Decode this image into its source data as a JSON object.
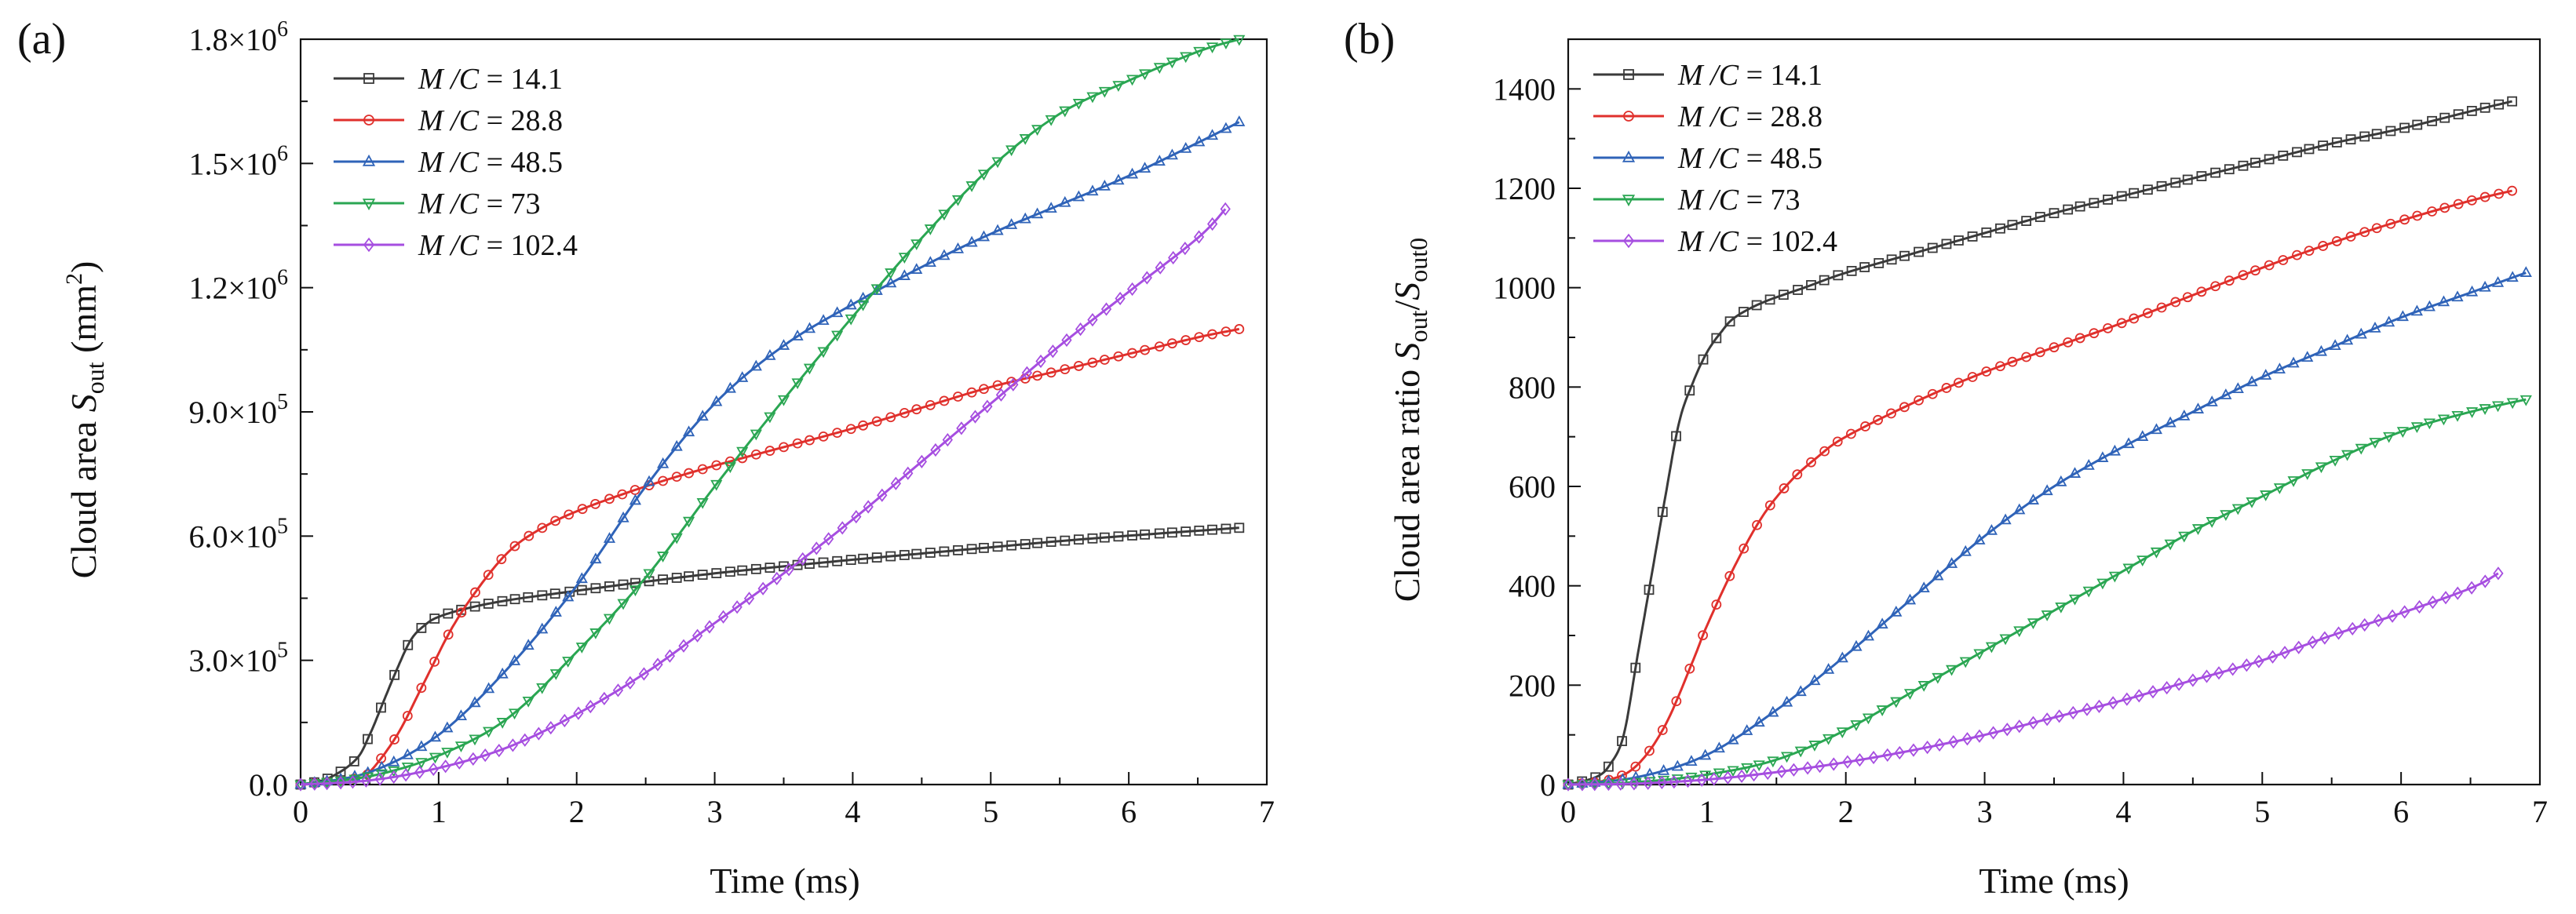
{
  "chart_data": [
    {
      "type": "line",
      "panel_label": "(a)",
      "xlabel": "Time (ms)",
      "ylabel": {
        "main": "Cloud area ",
        "var": "S",
        "sub": "out",
        "unit_pre": " (mm",
        "unit_sup": "2",
        "unit_post": ")"
      },
      "xlim": [
        0,
        7
      ],
      "ylim": [
        0,
        1800000
      ],
      "xticks": [
        0,
        1,
        2,
        3,
        4,
        5,
        6,
        7
      ],
      "xtick_labels": [
        "0",
        "1",
        "2",
        "3",
        "4",
        "5",
        "6",
        "7"
      ],
      "yticks": [
        0,
        300000,
        600000,
        900000,
        1200000,
        1500000,
        1800000
      ],
      "ytick_labels": [
        {
          "mant": "0.0",
          "exp": ""
        },
        {
          "mant": "3.0×10",
          "exp": "5"
        },
        {
          "mant": "6.0×10",
          "exp": "5"
        },
        {
          "mant": "9.0×10",
          "exp": "5"
        },
        {
          "mant": "1.2×10",
          "exp": "6"
        },
        {
          "mant": "1.5×10",
          "exp": "6"
        },
        {
          "mant": "1.8×10",
          "exp": "6"
        }
      ],
      "legend_position": "top-left",
      "series": [
        {
          "name": "M /C = 14.1",
          "legend": {
            "var": "M /C",
            "val": " = 14.1"
          },
          "color": "#3a3a3a",
          "marker": "square",
          "x": [
            0,
            0.2,
            0.4,
            0.5,
            0.6,
            0.7,
            0.8,
            0.9,
            1.0,
            1.2,
            1.5,
            2.0,
            2.5,
            3.0,
            3.5,
            4.0,
            4.5,
            5.0,
            5.5,
            6.0,
            6.5,
            6.8
          ],
          "y": [
            0,
            15000,
            60000,
            120000,
            200000,
            280000,
            350000,
            385000,
            405000,
            425000,
            445000,
            468000,
            490000,
            510000,
            527000,
            543000,
            558000,
            573000,
            588000,
            601000,
            613000,
            620000
          ]
        },
        {
          "name": "M /C = 28.8",
          "legend": {
            "var": "M /C",
            "val": " = 28.8"
          },
          "color": "#e0302c",
          "marker": "circle",
          "x": [
            0,
            0.4,
            0.5,
            0.7,
            0.9,
            1.1,
            1.3,
            1.5,
            1.7,
            2.0,
            2.5,
            3.0,
            3.5,
            4.0,
            4.5,
            5.0,
            5.5,
            6.0,
            6.5,
            6.8
          ],
          "y": [
            0,
            15000,
            30000,
            120000,
            250000,
            380000,
            480000,
            560000,
            610000,
            660000,
            720000,
            770000,
            815000,
            860000,
            910000,
            960000,
            1000000,
            1040000,
            1080000,
            1100000
          ]
        },
        {
          "name": "M /C = 48.5",
          "legend": {
            "var": "M /C",
            "val": " = 48.5"
          },
          "color": "#2f63b8",
          "marker": "triangle",
          "x": [
            0,
            0.5,
            1.0,
            1.5,
            2.0,
            2.5,
            3.0,
            3.5,
            4.0,
            4.5,
            5.0,
            5.5,
            6.0,
            6.5,
            6.8
          ],
          "y": [
            0,
            30000,
            120000,
            280000,
            480000,
            720000,
            920000,
            1060000,
            1160000,
            1250000,
            1330000,
            1400000,
            1470000,
            1550000,
            1600000
          ]
        },
        {
          "name": "M /C = 73",
          "legend": {
            "var": "M /C",
            "val": " = 73"
          },
          "color": "#2aa652",
          "marker": "triangle-down",
          "x": [
            0,
            0.5,
            1.0,
            1.5,
            2.0,
            2.5,
            3.0,
            3.5,
            4.0,
            4.5,
            5.0,
            5.5,
            6.0,
            6.5,
            6.8
          ],
          "y": [
            0,
            20000,
            70000,
            160000,
            320000,
            500000,
            720000,
            930000,
            1130000,
            1320000,
            1490000,
            1620000,
            1700000,
            1770000,
            1800000
          ]
        },
        {
          "name": "M /C = 102.4",
          "legend": {
            "var": "M /C",
            "val": " = 102.4"
          },
          "color": "#a64ee0",
          "marker": "diamond",
          "x": [
            0,
            0.5,
            1.0,
            1.5,
            2.0,
            2.5,
            3.0,
            3.5,
            4.0,
            4.5,
            5.0,
            5.5,
            6.0,
            6.5,
            6.7
          ],
          "y": [
            0,
            10000,
            40000,
            90000,
            170000,
            270000,
            390000,
            510000,
            640000,
            780000,
            920000,
            1060000,
            1190000,
            1320000,
            1390000
          ]
        }
      ]
    },
    {
      "type": "line",
      "panel_label": "(b)",
      "xlabel": "Time (ms)",
      "ylabel": {
        "main": "Cloud area ratio ",
        "var1": "S",
        "sub1": "out",
        "slash": "/",
        "var2": "S",
        "sub2": "out0"
      },
      "xlim": [
        0,
        7
      ],
      "ylim": [
        0,
        1500
      ],
      "xticks": [
        0,
        1,
        2,
        3,
        4,
        5,
        6,
        7
      ],
      "xtick_labels": [
        "0",
        "1",
        "2",
        "3",
        "4",
        "5",
        "6",
        "7"
      ],
      "yticks": [
        0,
        200,
        400,
        600,
        800,
        1000,
        1200,
        1400
      ],
      "ytick_labels": [
        "0",
        "200",
        "400",
        "600",
        "800",
        "1000",
        "1200",
        "1400"
      ],
      "legend_position": "top-left",
      "series": [
        {
          "name": "M /C = 14.1",
          "legend": {
            "var": "M /C",
            "val": " = 14.1"
          },
          "color": "#3a3a3a",
          "marker": "square",
          "x": [
            0,
            0.2,
            0.3,
            0.4,
            0.5,
            0.6,
            0.7,
            0.8,
            0.9,
            1.0,
            1.1,
            1.2,
            1.4,
            1.7,
            2.0,
            2.5,
            3.0,
            3.5,
            4.0,
            4.5,
            5.0,
            5.5,
            6.0,
            6.5,
            6.8
          ],
          "y": [
            0,
            15,
            40,
            100,
            260,
            420,
            580,
            730,
            810,
            870,
            910,
            940,
            970,
            1000,
            1030,
            1070,
            1110,
            1150,
            1185,
            1220,
            1255,
            1290,
            1320,
            1355,
            1375
          ]
        },
        {
          "name": "M /C = 28.8",
          "legend": {
            "var": "M /C",
            "val": " = 28.8"
          },
          "color": "#e0302c",
          "marker": "circle",
          "x": [
            0,
            0.3,
            0.5,
            0.7,
            0.9,
            1.0,
            1.2,
            1.4,
            1.6,
            1.8,
            2.0,
            2.5,
            3.0,
            3.5,
            4.0,
            4.5,
            5.0,
            5.5,
            6.0,
            6.5,
            6.8
          ],
          "y": [
            0,
            10,
            40,
            120,
            250,
            320,
            440,
            540,
            610,
            660,
            700,
            770,
            830,
            880,
            930,
            985,
            1040,
            1090,
            1135,
            1175,
            1195
          ]
        },
        {
          "name": "M /C = 48.5",
          "legend": {
            "var": "M /C",
            "val": " = 48.5"
          },
          "color": "#2f63b8",
          "marker": "triangle",
          "x": [
            0,
            0.5,
            1.0,
            1.5,
            2.0,
            2.5,
            3.0,
            3.5,
            4.0,
            4.5,
            5.0,
            5.5,
            6.0,
            6.5,
            6.9
          ],
          "y": [
            0,
            15,
            60,
            150,
            260,
            380,
            500,
            600,
            680,
            750,
            820,
            880,
            940,
            990,
            1030
          ]
        },
        {
          "name": "M /C = 73",
          "legend": {
            "var": "M /C",
            "val": " = 73"
          },
          "color": "#2aa652",
          "marker": "triangle-down",
          "x": [
            0,
            0.5,
            1.0,
            1.5,
            2.0,
            2.5,
            3.0,
            3.5,
            4.0,
            4.5,
            5.0,
            5.5,
            6.0,
            6.5,
            6.9
          ],
          "y": [
            0,
            5,
            20,
            50,
            110,
            190,
            270,
            350,
            430,
            510,
            580,
            650,
            710,
            750,
            775
          ]
        },
        {
          "name": "M /C = 102.4",
          "legend": {
            "var": "M /C",
            "val": " = 102.4"
          },
          "color": "#a64ee0",
          "marker": "diamond",
          "x": [
            0,
            0.5,
            1.0,
            1.5,
            2.0,
            2.5,
            3.0,
            3.5,
            4.0,
            4.5,
            5.0,
            5.5,
            6.0,
            6.5,
            6.7
          ],
          "y": [
            0,
            2,
            10,
            25,
            45,
            70,
            100,
            135,
            170,
            210,
            250,
            300,
            345,
            395,
            425
          ]
        }
      ]
    }
  ]
}
